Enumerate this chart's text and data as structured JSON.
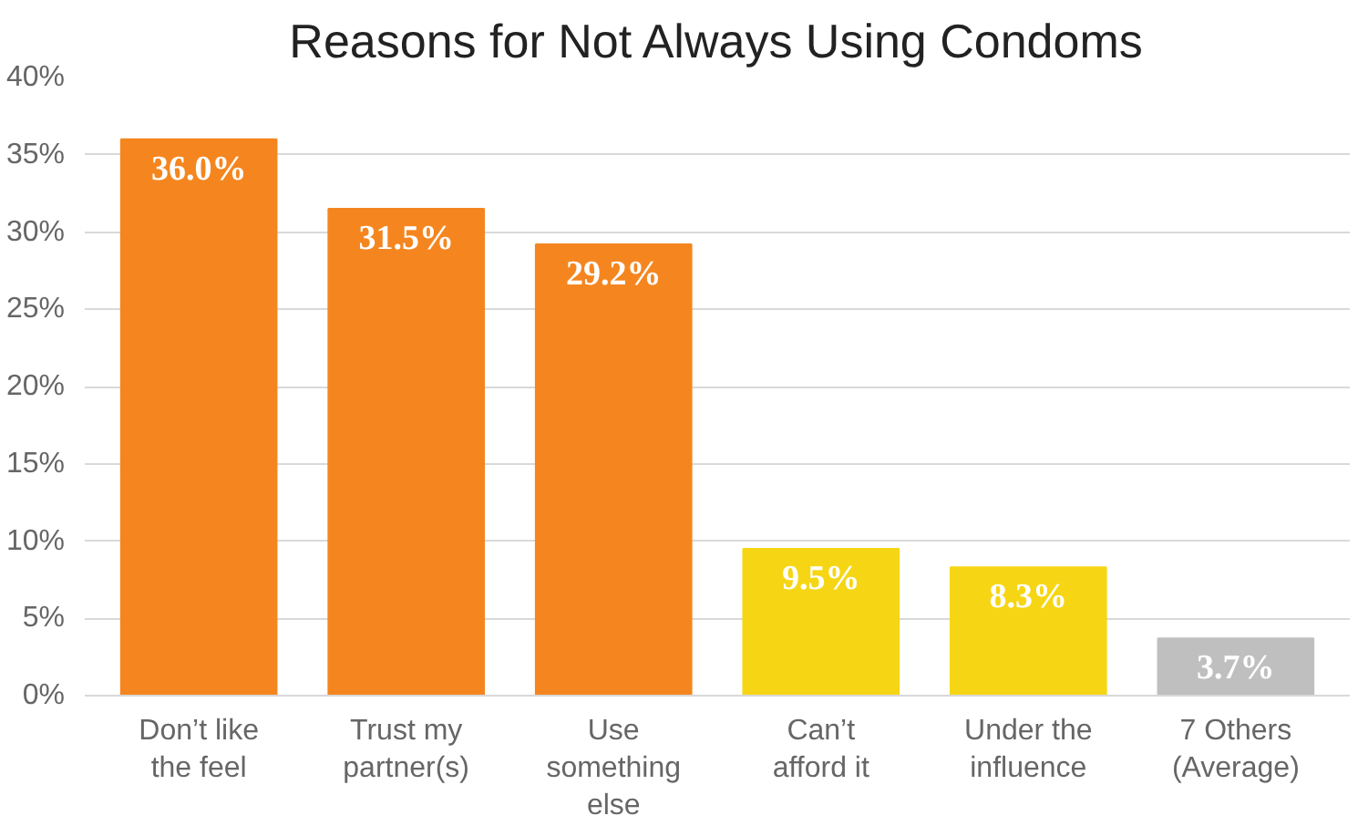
{
  "chart_data": {
    "type": "bar",
    "title": "Reasons for Not Always Using Condoms",
    "categories": [
      "Don’t like\nthe feel",
      "Trust my\npartner(s)",
      "Use\nsomething\nelse",
      "Can’t\nafford it",
      "Under the\ninfluence",
      "7 Others\n(Average)"
    ],
    "values": [
      36.0,
      31.5,
      29.2,
      9.5,
      8.3,
      3.7
    ],
    "colors": [
      "#f5861f",
      "#f5861f",
      "#f5861f",
      "#f6d614",
      "#f6d614",
      "#bfbfbf"
    ],
    "value_labels": [
      "36.0%",
      "31.5%",
      "29.2%",
      "9.5%",
      "8.3%",
      "3.7%"
    ],
    "ylim": [
      0,
      40
    ],
    "yticks": [
      {
        "value": 0,
        "label": "0%"
      },
      {
        "value": 5,
        "label": "5%"
      },
      {
        "value": 10,
        "label": "10%"
      },
      {
        "value": 15,
        "label": "15%"
      },
      {
        "value": 20,
        "label": "20%"
      },
      {
        "value": 25,
        "label": "25%"
      },
      {
        "value": 30,
        "label": "30%"
      },
      {
        "value": 35,
        "label": "35%"
      },
      {
        "value": 40,
        "label": "40%"
      }
    ],
    "grid": "y"
  }
}
